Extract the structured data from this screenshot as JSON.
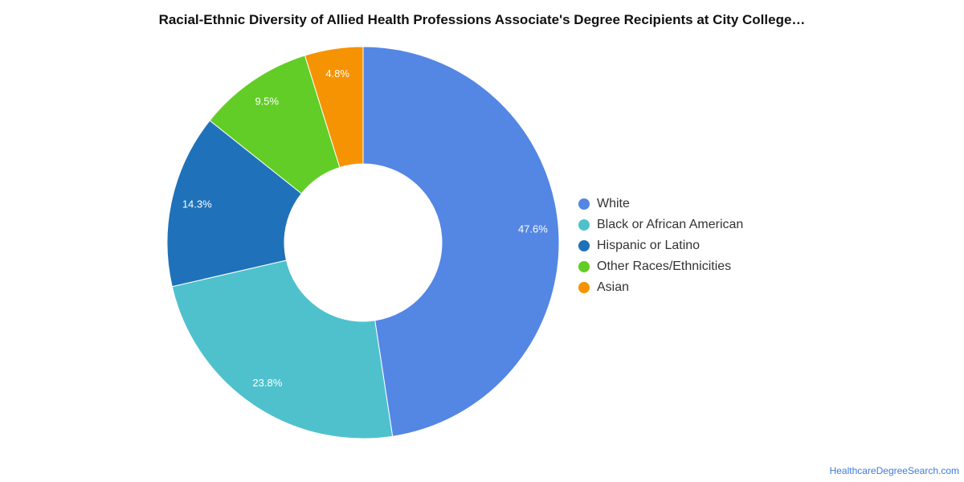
{
  "chart_data": {
    "type": "pie",
    "title": "Racial-Ethnic Diversity of Allied Health Professions Associate's Degree Recipients at City College…",
    "donut": true,
    "legend_position": "right",
    "slices": [
      {
        "label": "White",
        "value": 47.6,
        "display": "47.6%",
        "color": "#5486e3"
      },
      {
        "label": "Black or African American",
        "value": 23.8,
        "display": "23.8%",
        "color": "#4fc1cd"
      },
      {
        "label": "Hispanic or Latino",
        "value": 14.3,
        "display": "14.3%",
        "color": "#1f72b9"
      },
      {
        "label": "Other Races/Ethnicities",
        "value": 9.5,
        "display": "9.5%",
        "color": "#62cd26"
      },
      {
        "label": "Asian",
        "value": 4.8,
        "display": "4.8%",
        "color": "#f69302"
      }
    ]
  },
  "footer": {
    "source": "HealthcareDegreeSearch.com"
  }
}
